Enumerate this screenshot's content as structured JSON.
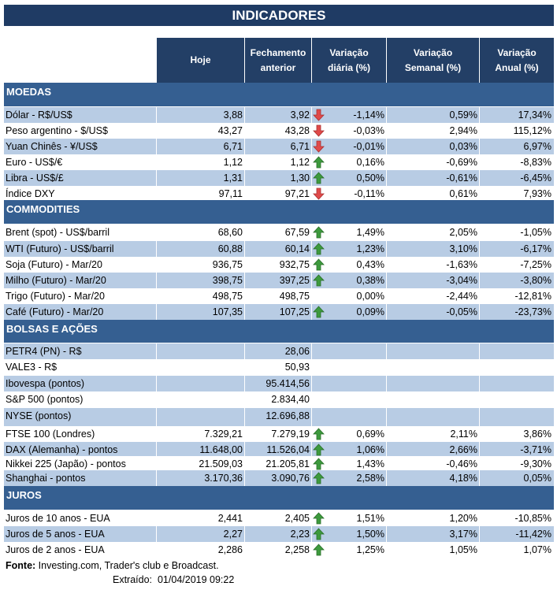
{
  "title": "INDICADORES",
  "columns": [
    "Hoje",
    "Fechamento anterior",
    "Variação diária (%)",
    "Variação Semanal (%)",
    "Variação Anual (%)"
  ],
  "colors": {
    "title": "#1f3b64",
    "header": "#233f66",
    "section": "#355f91",
    "stripe": "#b8cce4",
    "up": "#3d9a3d",
    "down": "#e04a4a"
  },
  "sections": [
    {
      "name": "MOEDAS",
      "rows": [
        {
          "label": "Dólar - R$/US$",
          "hoje": "3,88",
          "fech": "3,92",
          "arrow": "down",
          "diaria": "-1,14%",
          "semanal": "0,59%",
          "anual": "17,34%"
        },
        {
          "label": "Peso argentino - $/US$",
          "hoje": "43,27",
          "fech": "43,28",
          "arrow": "down",
          "diaria": "-0,03%",
          "semanal": "2,94%",
          "anual": "115,12%"
        },
        {
          "label": "Yuan Chinês - ¥/US$",
          "hoje": "6,71",
          "fech": "6,71",
          "arrow": "down",
          "diaria": "-0,01%",
          "semanal": "0,03%",
          "anual": "6,97%"
        },
        {
          "label": "Euro - US$/€",
          "hoje": "1,12",
          "fech": "1,12",
          "arrow": "up",
          "diaria": "0,16%",
          "semanal": "-0,69%",
          "anual": "-8,83%"
        },
        {
          "label": "Libra - US$/£",
          "hoje": "1,31",
          "fech": "1,30",
          "arrow": "up",
          "diaria": "0,50%",
          "semanal": "-0,61%",
          "anual": "-6,45%"
        },
        {
          "label": "Índice DXY",
          "hoje": "97,11",
          "fech": "97,21",
          "arrow": "down",
          "diaria": "-0,11%",
          "semanal": "0,61%",
          "anual": "7,93%"
        }
      ]
    },
    {
      "name": "COMMODITIES",
      "rows": [
        {
          "label": "Brent (spot) - US$/barril",
          "hoje": "68,60",
          "fech": "67,59",
          "arrow": "up",
          "diaria": "1,49%",
          "semanal": "2,05%",
          "anual": "-1,05%"
        },
        {
          "label": "WTI (Futuro) - US$/barril",
          "hoje": "60,88",
          "fech": "60,14",
          "arrow": "up",
          "diaria": "1,23%",
          "semanal": "3,10%",
          "anual": "-6,17%"
        },
        {
          "label": "Soja (Futuro) - Mar/20",
          "hoje": "936,75",
          "fech": "932,75",
          "arrow": "up",
          "diaria": "0,43%",
          "semanal": "-1,63%",
          "anual": "-7,25%"
        },
        {
          "label": "Milho (Futuro) - Mar/20",
          "hoje": "398,75",
          "fech": "397,25",
          "arrow": "up",
          "diaria": "0,38%",
          "semanal": "-3,04%",
          "anual": "-3,80%"
        },
        {
          "label": "Trigo (Futuro) - Mar/20",
          "hoje": "498,75",
          "fech": "498,75",
          "arrow": null,
          "diaria": "0,00%",
          "semanal": "-2,44%",
          "anual": "-12,81%"
        },
        {
          "label": "Café (Futuro) - Mar/20",
          "hoje": "107,35",
          "fech": "107,25",
          "arrow": "up",
          "diaria": "0,09%",
          "semanal": "-0,05%",
          "anual": "-23,73%"
        }
      ]
    },
    {
      "name": "BOLSAS E AÇÕES",
      "rows": [
        {
          "label": "PETR4 (PN) - R$",
          "hoje": "",
          "fech": "28,06",
          "arrow": null,
          "diaria": "",
          "semanal": "",
          "anual": ""
        },
        {
          "label": "VALE3 - R$",
          "hoje": "",
          "fech": "50,93",
          "arrow": null,
          "diaria": "",
          "semanal": "",
          "anual": ""
        },
        {
          "label": "Ibovespa (pontos)",
          "hoje": "",
          "fech": "95.414,56",
          "arrow": null,
          "diaria": "",
          "semanal": "",
          "anual": ""
        },
        {
          "label": "S&P 500 (pontos)",
          "hoje": "",
          "fech": "2.834,40",
          "arrow": null,
          "diaria": "",
          "semanal": "",
          "anual": ""
        },
        {
          "label": "NYSE (pontos)",
          "hoje": "",
          "fech": "12.696,88",
          "arrow": null,
          "diaria": "",
          "semanal": "",
          "anual": ""
        },
        {
          "label": "FTSE 100 (Londres)",
          "hoje": "7.329,21",
          "fech": "7.279,19",
          "arrow": "up",
          "diaria": "0,69%",
          "semanal": "2,11%",
          "anual": "3,86%"
        },
        {
          "label": "DAX (Alemanha) - pontos",
          "hoje": "11.648,00",
          "fech": "11.526,04",
          "arrow": "up",
          "diaria": "1,06%",
          "semanal": "2,66%",
          "anual": "-3,71%"
        },
        {
          "label": "Nikkei 225 (Japão) - pontos",
          "hoje": "21.509,03",
          "fech": "21.205,81",
          "arrow": "up",
          "diaria": "1,43%",
          "semanal": "-0,46%",
          "anual": "-9,30%"
        },
        {
          "label": "Shanghai - pontos",
          "hoje": "3.170,36",
          "fech": "3.090,76",
          "arrow": "up",
          "diaria": "2,58%",
          "semanal": "4,18%",
          "anual": "0,05%"
        }
      ]
    },
    {
      "name": "JUROS",
      "rows": [
        {
          "label": "Juros de 10 anos - EUA",
          "hoje": "2,441",
          "fech": "2,405",
          "arrow": "up",
          "diaria": "1,51%",
          "semanal": "1,20%",
          "anual": "-10,85%"
        },
        {
          "label": "Juros de 5 anos - EUA",
          "hoje": "2,27",
          "fech": "2,23",
          "arrow": "up",
          "diaria": "1,50%",
          "semanal": "3,17%",
          "anual": "-11,42%"
        },
        {
          "label": "Juros de 2 anos - EUA",
          "hoje": "2,286",
          "fech": "2,258",
          "arrow": "up",
          "diaria": "1,25%",
          "semanal": "1,05%",
          "anual": "1,07%"
        }
      ]
    }
  ],
  "footer": {
    "source_label": "Fonte:",
    "source_text": " Investing.com, Trader's club e Broadcast.",
    "extracted_label": "Extraído:",
    "extracted_value": "01/04/2019 09:22"
  }
}
